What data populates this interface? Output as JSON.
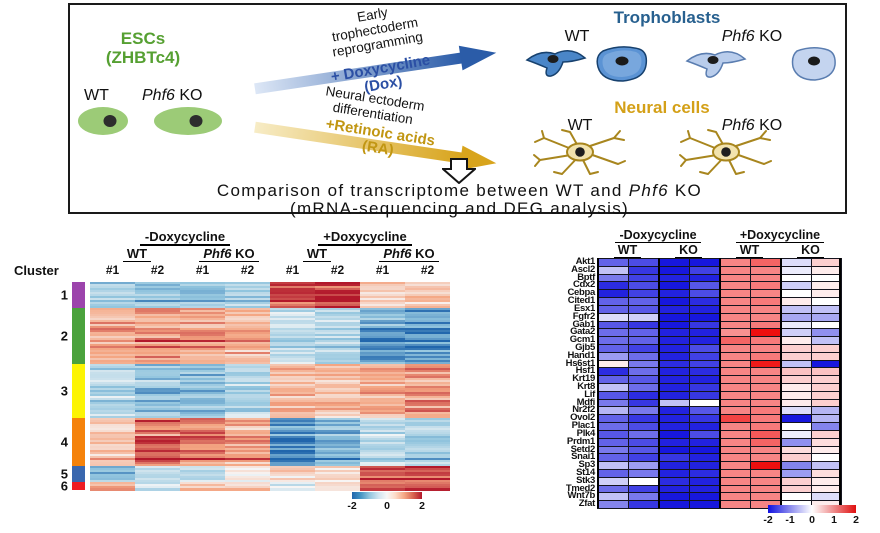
{
  "labels": {
    "wt": "WT",
    "phf6": "Phf6",
    "ko": "KO"
  },
  "top_panel": {
    "esc_title1": "ESCs",
    "esc_title2": "(ZHBTc4)",
    "dox_path1": "Early",
    "dox_path2": "trophectoderm",
    "dox_path3": "reprogramming",
    "dox_treat1": "+ Doxycycline",
    "dox_treat2": "(Dox)",
    "ra_path1": "Neural ectoderm",
    "ra_path2": "differentiation",
    "ra_treat1": "+Retinoic acids",
    "ra_treat2": "(RA)",
    "trophoblasts_title": "Trophoblasts",
    "neural_title": "Neural cells",
    "conclusion1a": "Comparison of transcriptome between WT and",
    "conclusion1b": "Phf6",
    "conclusion1c": "KO",
    "conclusion2": "(mRNA-sequencing  and DEG analysis)"
  },
  "chart_data": [
    {
      "type": "heatmap",
      "name": "deg-cluster-heatmap",
      "cluster_label": "Cluster",
      "group_headers": [
        "-Doxycycline",
        "+Doxycycline"
      ],
      "subgroup_headers": [
        "WT",
        "Phf6 KO",
        "WT",
        "Phf6 KO"
      ],
      "replicates": [
        "#1",
        "#2",
        "#1",
        "#2",
        "#1",
        "#2",
        "#1",
        "#2"
      ],
      "columns": [
        "-Dox WT #1",
        "-Dox WT #2",
        "-Dox Phf6KO #1",
        "-Dox Phf6KO #2",
        "+Dox WT #1",
        "+Dox WT #2",
        "+Dox Phf6KO #1",
        "+Dox Phf6KO #2"
      ],
      "colorbar_ticks": [
        "-2",
        "0",
        "2"
      ],
      "scale_stops": [
        "#2166ac",
        "#92c5de",
        "#f7f7f7",
        "#f4a582",
        "#b2182b"
      ],
      "total_rows": 104,
      "clusters": [
        {
          "id": "1",
          "color": "#9c44ac",
          "rows": 13,
          "means": [
            -0.8,
            -0.9,
            -0.9,
            -0.8,
            1.7,
            1.8,
            0.55,
            0.5
          ]
        },
        {
          "id": "2",
          "color": "#4aa23c",
          "rows": 28,
          "means": [
            0.9,
            1.0,
            0.9,
            0.8,
            -0.5,
            -0.6,
            -1.3,
            -1.4
          ]
        },
        {
          "id": "3",
          "color": "#fcf403",
          "rows": 27,
          "means": [
            -0.6,
            -0.9,
            -0.9,
            -0.6,
            0.7,
            0.6,
            0.85,
            0.95
          ]
        },
        {
          "id": "4",
          "color": "#f5820a",
          "rows": 24,
          "means": [
            0.5,
            1.2,
            1.1,
            0.8,
            -1.4,
            -1.0,
            -0.55,
            -0.6
          ]
        },
        {
          "id": "5",
          "color": "#3a67ae",
          "rows": 8,
          "means": [
            -1.0,
            -0.5,
            -0.5,
            0.1,
            0.4,
            0.3,
            1.5,
            1.6
          ]
        },
        {
          "id": "6",
          "color": "#ee1c23",
          "rows": 4,
          "means": [
            0.8,
            -0.4,
            0.5,
            0.6,
            -0.3,
            0.2,
            1.2,
            1.4
          ]
        }
      ]
    },
    {
      "type": "heatmap",
      "name": "trophoblast-gene-heatmap",
      "group_headers": [
        "-Doxycycline",
        "+Doxycycline"
      ],
      "subgroup_headers": [
        "WT",
        "KO",
        "WT",
        "KO"
      ],
      "colorbar_ticks": [
        "-2",
        "-1",
        "0",
        "1",
        "2"
      ],
      "scale_stops": [
        "#1010e0",
        "#ffffff",
        "#e01010"
      ],
      "genes": [
        "Akt1",
        "Ascl2",
        "Bptf",
        "Cdx2",
        "Cebpa",
        "Cited1",
        "Esx1",
        "Fgfr2",
        "Gab1",
        "Gata2",
        "Gcm1",
        "Gjb5",
        "Hand1",
        "Hs6st1",
        "Hsf1",
        "Krt19",
        "Krt8",
        "Lif",
        "Mdfi",
        "Nr2f2",
        "Ovol2",
        "Plac1",
        "Plk4",
        "Prdm1",
        "Setd2",
        "Snai1",
        "Sp3",
        "St14",
        "Stk3",
        "Tmed2",
        "Wnt7b",
        "Zfat"
      ],
      "values": [
        [
          -1.2,
          -1.4,
          -1.9,
          -1.9,
          0.9,
          1.2,
          -0.2,
          0.3
        ],
        [
          -0.4,
          -1.6,
          -1.9,
          -1.5,
          0.9,
          0.9,
          -0.1,
          0.1
        ],
        [
          -1.0,
          -1.5,
          -1.8,
          -1.8,
          0.9,
          0.9,
          0.0,
          0.0
        ],
        [
          -1.7,
          -1.4,
          -1.9,
          -1.3,
          0.9,
          1.0,
          -0.3,
          0.1
        ],
        [
          -1.8,
          -1.5,
          -1.8,
          -1.4,
          0.9,
          0.9,
          0.0,
          0.1
        ],
        [
          -1.2,
          -1.2,
          -1.9,
          -1.7,
          0.9,
          1.0,
          0.1,
          0.0
        ],
        [
          -1.2,
          -1.3,
          -1.8,
          -1.8,
          0.9,
          0.9,
          -0.4,
          -0.4
        ],
        [
          -0.2,
          -0.3,
          -1.9,
          -1.9,
          0.9,
          0.9,
          -0.6,
          -0.6
        ],
        [
          -1.3,
          -1.6,
          -1.9,
          -1.6,
          0.9,
          1.0,
          -0.1,
          0.0
        ],
        [
          -1.1,
          -1.2,
          -1.8,
          -1.8,
          0.8,
          2.0,
          -0.3,
          -0.8
        ],
        [
          -1.1,
          -1.2,
          -1.8,
          -1.8,
          1.2,
          1.0,
          0.1,
          -0.4
        ],
        [
          -1.2,
          -1.5,
          -1.8,
          -1.4,
          0.9,
          0.9,
          0.3,
          0.3
        ],
        [
          -0.7,
          -1.1,
          -1.8,
          -1.5,
          0.9,
          1.0,
          0.3,
          0.3
        ],
        [
          0.1,
          -1.0,
          -1.7,
          -1.5,
          0.9,
          1.9,
          -0.4,
          -1.9
        ],
        [
          -1.7,
          -1.1,
          -1.8,
          -1.7,
          0.9,
          0.9,
          0.4,
          0.4
        ],
        [
          -1.2,
          -1.3,
          -1.8,
          -1.8,
          0.9,
          0.9,
          0.3,
          0.3
        ],
        [
          -0.4,
          -1.1,
          -1.8,
          -1.6,
          0.9,
          0.9,
          0.1,
          0.3
        ],
        [
          -1.3,
          -1.7,
          -1.8,
          -1.6,
          0.9,
          0.9,
          0.1,
          0.3
        ],
        [
          -1.0,
          -1.6,
          -0.4,
          0.0,
          0.9,
          0.9,
          0.1,
          0.3
        ],
        [
          -0.5,
          -1.0,
          -1.8,
          -1.3,
          0.9,
          1.0,
          -0.2,
          -0.5
        ],
        [
          -1.2,
          -1.6,
          -1.8,
          -1.6,
          1.5,
          1.0,
          -1.9,
          -0.5
        ],
        [
          -1.1,
          -1.4,
          -1.8,
          -1.8,
          0.9,
          1.0,
          0.0,
          -0.9
        ],
        [
          -1.3,
          -1.1,
          -1.9,
          -1.4,
          0.9,
          1.3,
          -0.1,
          0.3
        ],
        [
          -1.2,
          -1.4,
          -1.8,
          -1.8,
          0.9,
          1.2,
          -0.8,
          0.2
        ],
        [
          -1.0,
          -1.3,
          -1.9,
          -1.9,
          0.9,
          0.9,
          0.2,
          0.1
        ],
        [
          -1.2,
          -1.5,
          -1.6,
          -1.8,
          0.9,
          0.9,
          0.3,
          0.0
        ],
        [
          -0.4,
          -0.7,
          -1.8,
          -1.8,
          0.9,
          2.0,
          -0.9,
          -0.4
        ],
        [
          -1.2,
          -1.0,
          -1.8,
          -1.7,
          0.9,
          0.9,
          -0.7,
          0.2
        ],
        [
          -0.3,
          0.0,
          -1.7,
          -1.8,
          0.9,
          0.9,
          0.3,
          0.1
        ],
        [
          -1.1,
          -1.5,
          -1.8,
          -1.8,
          0.9,
          0.9,
          0.3,
          0.1
        ],
        [
          -0.4,
          -1.0,
          -1.9,
          -1.9,
          0.9,
          0.9,
          0.0,
          -0.2
        ],
        [
          -0.9,
          -1.6,
          -1.9,
          -1.9,
          0.9,
          0.9,
          0.0,
          0.1
        ]
      ]
    }
  ]
}
